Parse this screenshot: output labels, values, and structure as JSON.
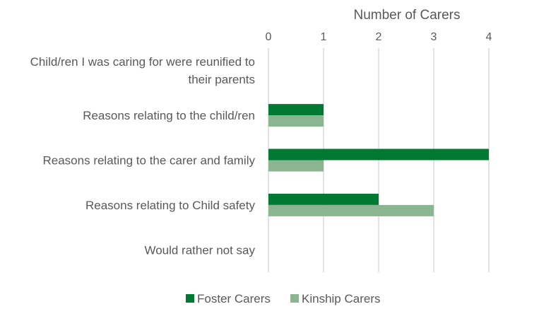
{
  "chart_data": {
    "type": "bar",
    "orientation": "horizontal",
    "title": "",
    "xlabel": "Number of Carers",
    "ylabel": "",
    "xlim": [
      0,
      4
    ],
    "xticks": [
      0,
      1,
      2,
      3,
      4
    ],
    "x_axis_position": "top",
    "grid": true,
    "legend_position": "bottom",
    "categories": [
      [
        "Child/ren I was caring for were reunified to",
        "their parents"
      ],
      [
        "Reasons relating to the child/ren"
      ],
      [
        "Reasons relating to the carer and family"
      ],
      [
        "Reasons relating to Child safety"
      ],
      [
        "Would rather not say"
      ]
    ],
    "series": [
      {
        "name": "Foster Carers",
        "color": "#007a33",
        "values": [
          0,
          1,
          4,
          2,
          0
        ]
      },
      {
        "name": "Kinship Carers",
        "color": "#8bb591",
        "values": [
          0,
          1,
          1,
          3,
          0
        ]
      }
    ]
  }
}
